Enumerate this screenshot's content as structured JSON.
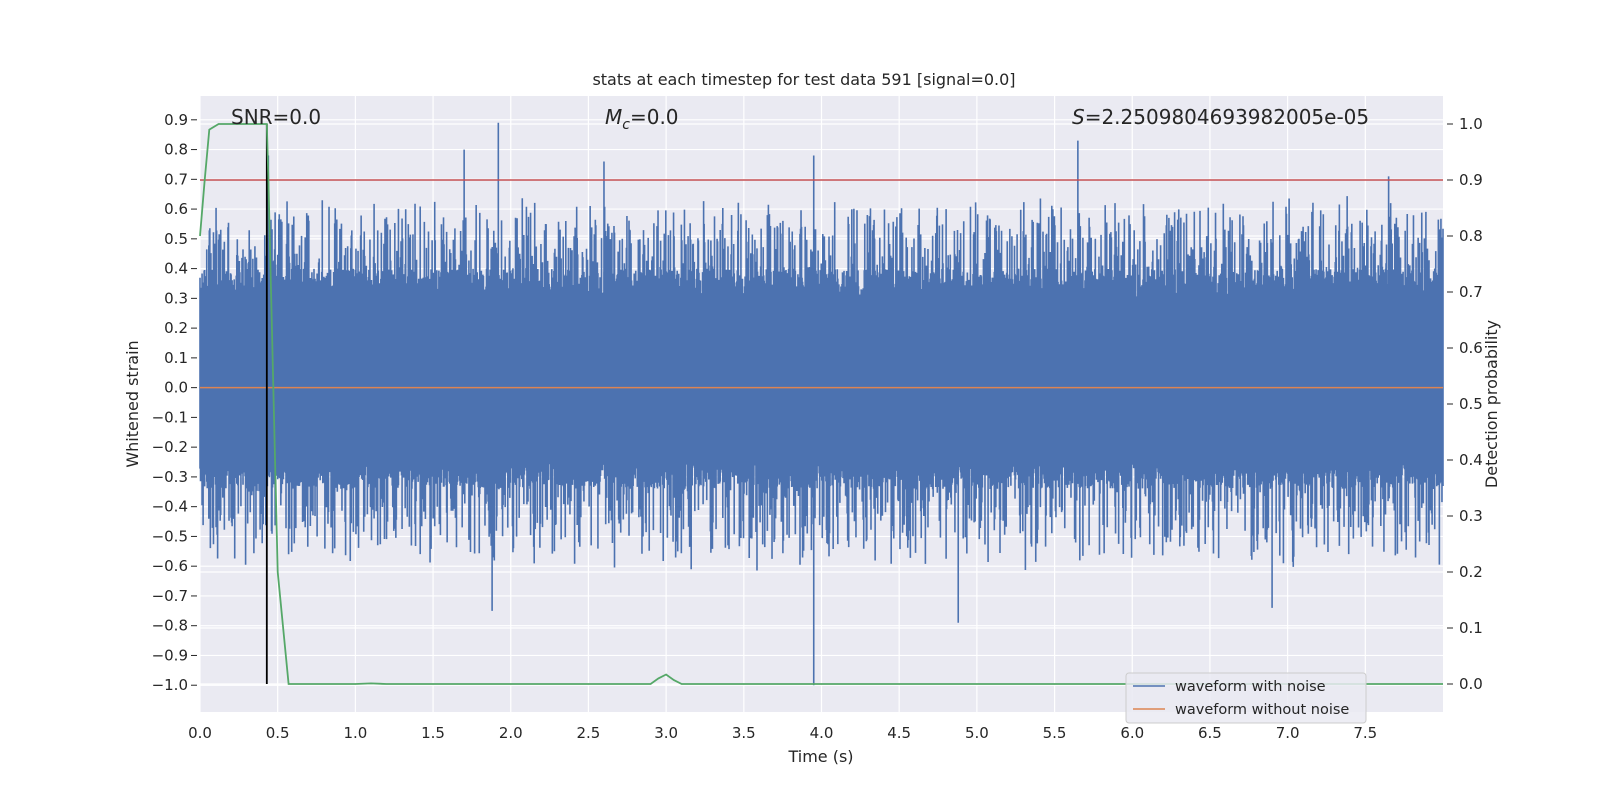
{
  "chart_data": {
    "type": "line",
    "title": "stats at each timestep for test data 591 [signal=0.0]",
    "xlabel": "Time (s)",
    "ylabel_left": "Whitened strain",
    "ylabel_right": "Detection probability",
    "xlim": [
      0.0,
      8.0
    ],
    "ylim_left": [
      -1.09,
      0.98
    ],
    "ylim_right": [
      -0.05,
      1.05
    ],
    "x_ticks": [
      "0.0",
      "0.5",
      "1.0",
      "1.5",
      "2.0",
      "2.5",
      "3.0",
      "3.5",
      "4.0",
      "4.5",
      "5.0",
      "5.5",
      "6.0",
      "6.5",
      "7.0",
      "7.5"
    ],
    "y_ticks_left": [
      "0.9",
      "0.8",
      "0.7",
      "0.6",
      "0.5",
      "0.4",
      "0.3",
      "0.2",
      "0.1",
      "0.0",
      "−0.1",
      "−0.2",
      "−0.3",
      "−0.4",
      "−0.5",
      "−0.6",
      "−0.7",
      "−0.8",
      "−0.9",
      "−1.0"
    ],
    "y_ticks_right": [
      "1.0",
      "0.9",
      "0.8",
      "0.7",
      "0.6",
      "0.5",
      "0.4",
      "0.3",
      "0.2",
      "0.1",
      "0.0"
    ],
    "annotations": {
      "snr": "SNR=0.0",
      "mc_symbol": "M",
      "mc_sub": "c",
      "mc_value": "=0.0",
      "s_symbol": "S",
      "s_value": "=2.2509804693982005e-05"
    },
    "threshold": {
      "value": 0.9,
      "axis": "right",
      "color": "#c44e52"
    },
    "marker_time": 0.43,
    "colors": {
      "noisy": "#4c72b0",
      "clean": "#dd8452",
      "prob": "#55a868",
      "threshold": "#c44e52",
      "marker": "#000000",
      "axes_bg": "#eaeaf2",
      "grid": "#ffffff"
    },
    "series": [
      {
        "name": "waveform with noise",
        "axis": "left",
        "description": "dense whitened noise, roughly uniform band about 0.0; notable spikes",
        "band_core": [
          -0.24,
          0.3
        ],
        "peaks": [
          {
            "x": 0.44,
            "y": 0.78
          },
          {
            "x": 1.7,
            "y": 0.8
          },
          {
            "x": 1.92,
            "y": 0.89
          },
          {
            "x": 2.6,
            "y": 0.76
          },
          {
            "x": 3.95,
            "y": 0.78
          },
          {
            "x": 5.65,
            "y": 0.83
          },
          {
            "x": 7.65,
            "y": 0.71
          },
          {
            "x": 1.88,
            "y": -0.75
          },
          {
            "x": 3.95,
            "y": -1.0
          },
          {
            "x": 4.88,
            "y": -0.79
          },
          {
            "x": 6.9,
            "y": -0.74
          }
        ]
      },
      {
        "name": "waveform without noise",
        "axis": "left",
        "x": [
          0.0,
          8.0
        ],
        "y": [
          0.0,
          0.0
        ]
      },
      {
        "name": "detection probability",
        "axis": "right",
        "x": [
          0.0,
          0.03,
          0.06,
          0.12,
          0.2,
          0.3,
          0.4,
          0.43,
          0.44,
          0.5,
          0.57,
          0.7,
          1.0,
          1.1,
          1.2,
          2.9,
          2.95,
          3.0,
          3.05,
          3.1,
          8.0
        ],
        "y": [
          0.8,
          0.9,
          0.99,
          1.0,
          1.0,
          1.0,
          1.0,
          1.0,
          0.9,
          0.2,
          0.0,
          0.0,
          0.0,
          0.001,
          0.0,
          0.0,
          0.01,
          0.017,
          0.007,
          0.0,
          0.0
        ]
      }
    ],
    "legend": {
      "position": "lower-right",
      "entries": [
        {
          "label": "waveform with noise",
          "color": "#4c72b0"
        },
        {
          "label": "waveform without noise",
          "color": "#dd8452"
        }
      ]
    }
  }
}
